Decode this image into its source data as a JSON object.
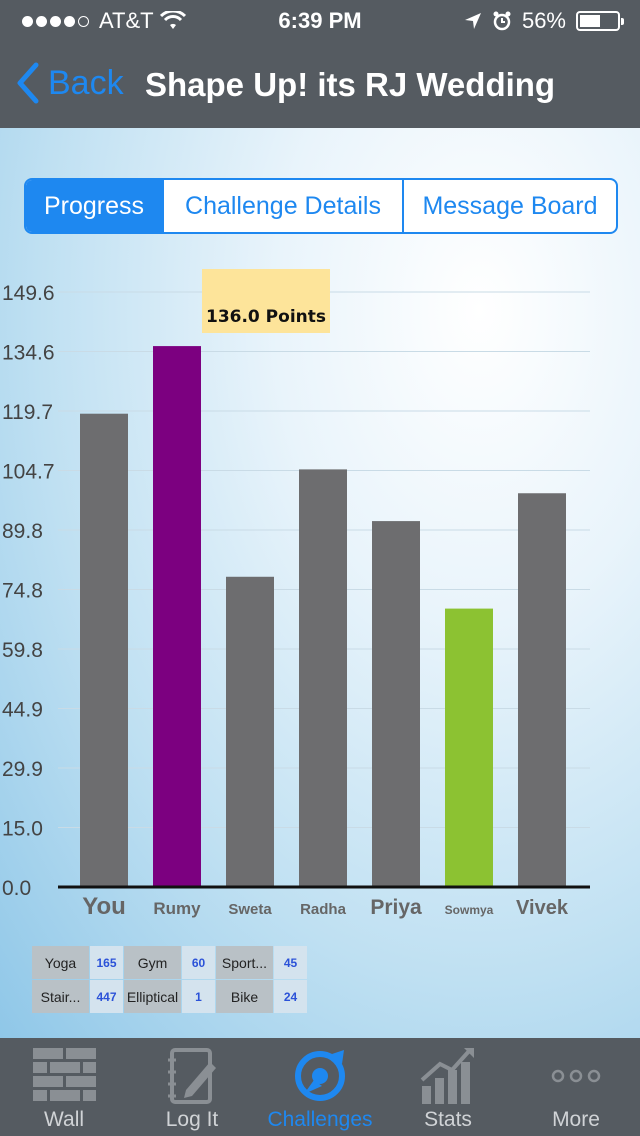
{
  "status": {
    "carrier": "AT&T",
    "time": "6:39 PM",
    "battery": "56%",
    "battery_level": 0.56
  },
  "nav": {
    "back_label": "Back",
    "title": "Shape Up! its RJ Wedding"
  },
  "tabs_segment": [
    {
      "label": "Progress",
      "active": true
    },
    {
      "label": "Challenge Details",
      "active": false
    },
    {
      "label": "Message Board",
      "active": false
    }
  ],
  "tooltip": {
    "text": "136.0 Points"
  },
  "chart_data": {
    "type": "bar",
    "categories": [
      "You",
      "Rumy",
      "Sweta",
      "Radha",
      "Priya",
      "Sowmya",
      "Vivek"
    ],
    "values": [
      119.0,
      136.0,
      78.0,
      105.0,
      92.0,
      70.0,
      99.0
    ],
    "colors": [
      "#6d6d6f",
      "#7c0080",
      "#6d6d6f",
      "#6d6d6f",
      "#6d6d6f",
      "#8cc232",
      "#6d6d6f"
    ],
    "ytick_labels": [
      "0.0",
      "15.0",
      "29.9",
      "44.9",
      "59.8",
      "74.8",
      "89.8",
      "104.7",
      "119.7",
      "134.6",
      "149.6"
    ],
    "ylim": [
      0,
      149.6
    ],
    "grid": true
  },
  "stats": [
    {
      "label": "Yoga",
      "value": "165"
    },
    {
      "label": "Gym",
      "value": "60"
    },
    {
      "label": "Sport...",
      "value": "45"
    },
    {
      "label": "Stair...",
      "value": "447"
    },
    {
      "label": "Elliptical",
      "value": "1"
    },
    {
      "label": "Bike",
      "value": "24"
    }
  ],
  "tabbar": [
    {
      "label": "Wall",
      "icon": "brick-wall-icon",
      "active": false
    },
    {
      "label": "Log It",
      "icon": "notebook-pencil-icon",
      "active": false
    },
    {
      "label": "Challenges",
      "icon": "challenge-ribbon-icon",
      "active": true
    },
    {
      "label": "Stats",
      "icon": "bar-growth-icon",
      "active": false
    },
    {
      "label": "More",
      "icon": "more-dots-icon",
      "active": false
    }
  ],
  "colors": {
    "accent": "#1e88f0",
    "bar_header": "#555b61"
  }
}
